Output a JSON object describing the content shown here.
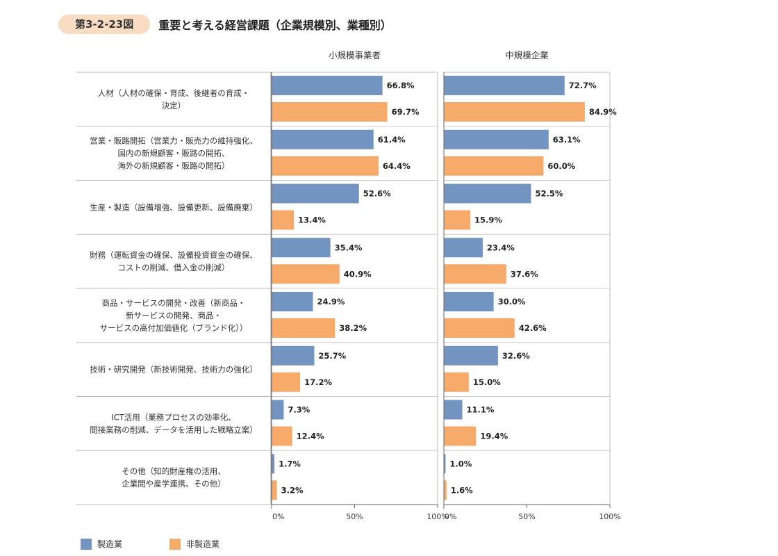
{
  "figure": {
    "number": "第3-2-23図",
    "title": "重要と考える経営課題（企業規模別、業種別）"
  },
  "colors": {
    "manufacturing": "#7393c0",
    "non_manufacturing": "#f5aa6a",
    "badge": "#f8dcc2"
  },
  "legend": {
    "manufacturing": "製造業",
    "non_manufacturing": "非製造業"
  },
  "chart_data": {
    "type": "bar",
    "orientation": "horizontal",
    "categories": [
      [
        "人材（人材の確保・育成、後継者の育成・",
        "決定）"
      ],
      [
        "営業・販路開拓（営業力・販売力の維持強化、",
        "国内の新規顧客・販路の開拓、",
        "海外の新規顧客・販路の開拓）"
      ],
      [
        "生産・製造（設備増強、設備更新、設備廃棄）"
      ],
      [
        "財務（運転資金の確保、設備投資資金の確保、",
        "コストの削減、借入金の削減）"
      ],
      [
        "商品・サービスの開発・改善（新商品・",
        "新サービスの開発、商品・",
        "サービスの高付加価値化（ブランド化））"
      ],
      [
        "技術・研究開発（新技術開発、技術力の強化）"
      ],
      [
        "ICT活用（業務プロセスの効率化、",
        "間接業務の削減、データを活用した戦略立案）"
      ],
      [
        "その他（知的財産権の活用、",
        "企業間や産学連携、その他）"
      ]
    ],
    "panels": [
      {
        "title": "小規模事業者",
        "series": [
          {
            "name": "製造業",
            "values": [
              66.8,
              61.4,
              52.6,
              35.4,
              24.9,
              25.7,
              7.3,
              1.7
            ]
          },
          {
            "name": "非製造業",
            "values": [
              69.7,
              64.4,
              13.4,
              40.9,
              38.2,
              17.2,
              12.4,
              3.2
            ]
          }
        ]
      },
      {
        "title": "中規模企業",
        "series": [
          {
            "name": "製造業",
            "values": [
              72.7,
              63.1,
              52.5,
              23.4,
              30.0,
              32.6,
              11.1,
              1.0
            ]
          },
          {
            "name": "非製造業",
            "values": [
              84.9,
              60.0,
              15.9,
              37.6,
              42.6,
              15.0,
              19.4,
              1.6
            ]
          }
        ]
      }
    ],
    "xlim": [
      0,
      100
    ],
    "xticks": [
      "0%",
      "50%",
      "100%"
    ],
    "value_suffix": "%",
    "grid": false,
    "legend_position": "bottom-left"
  }
}
